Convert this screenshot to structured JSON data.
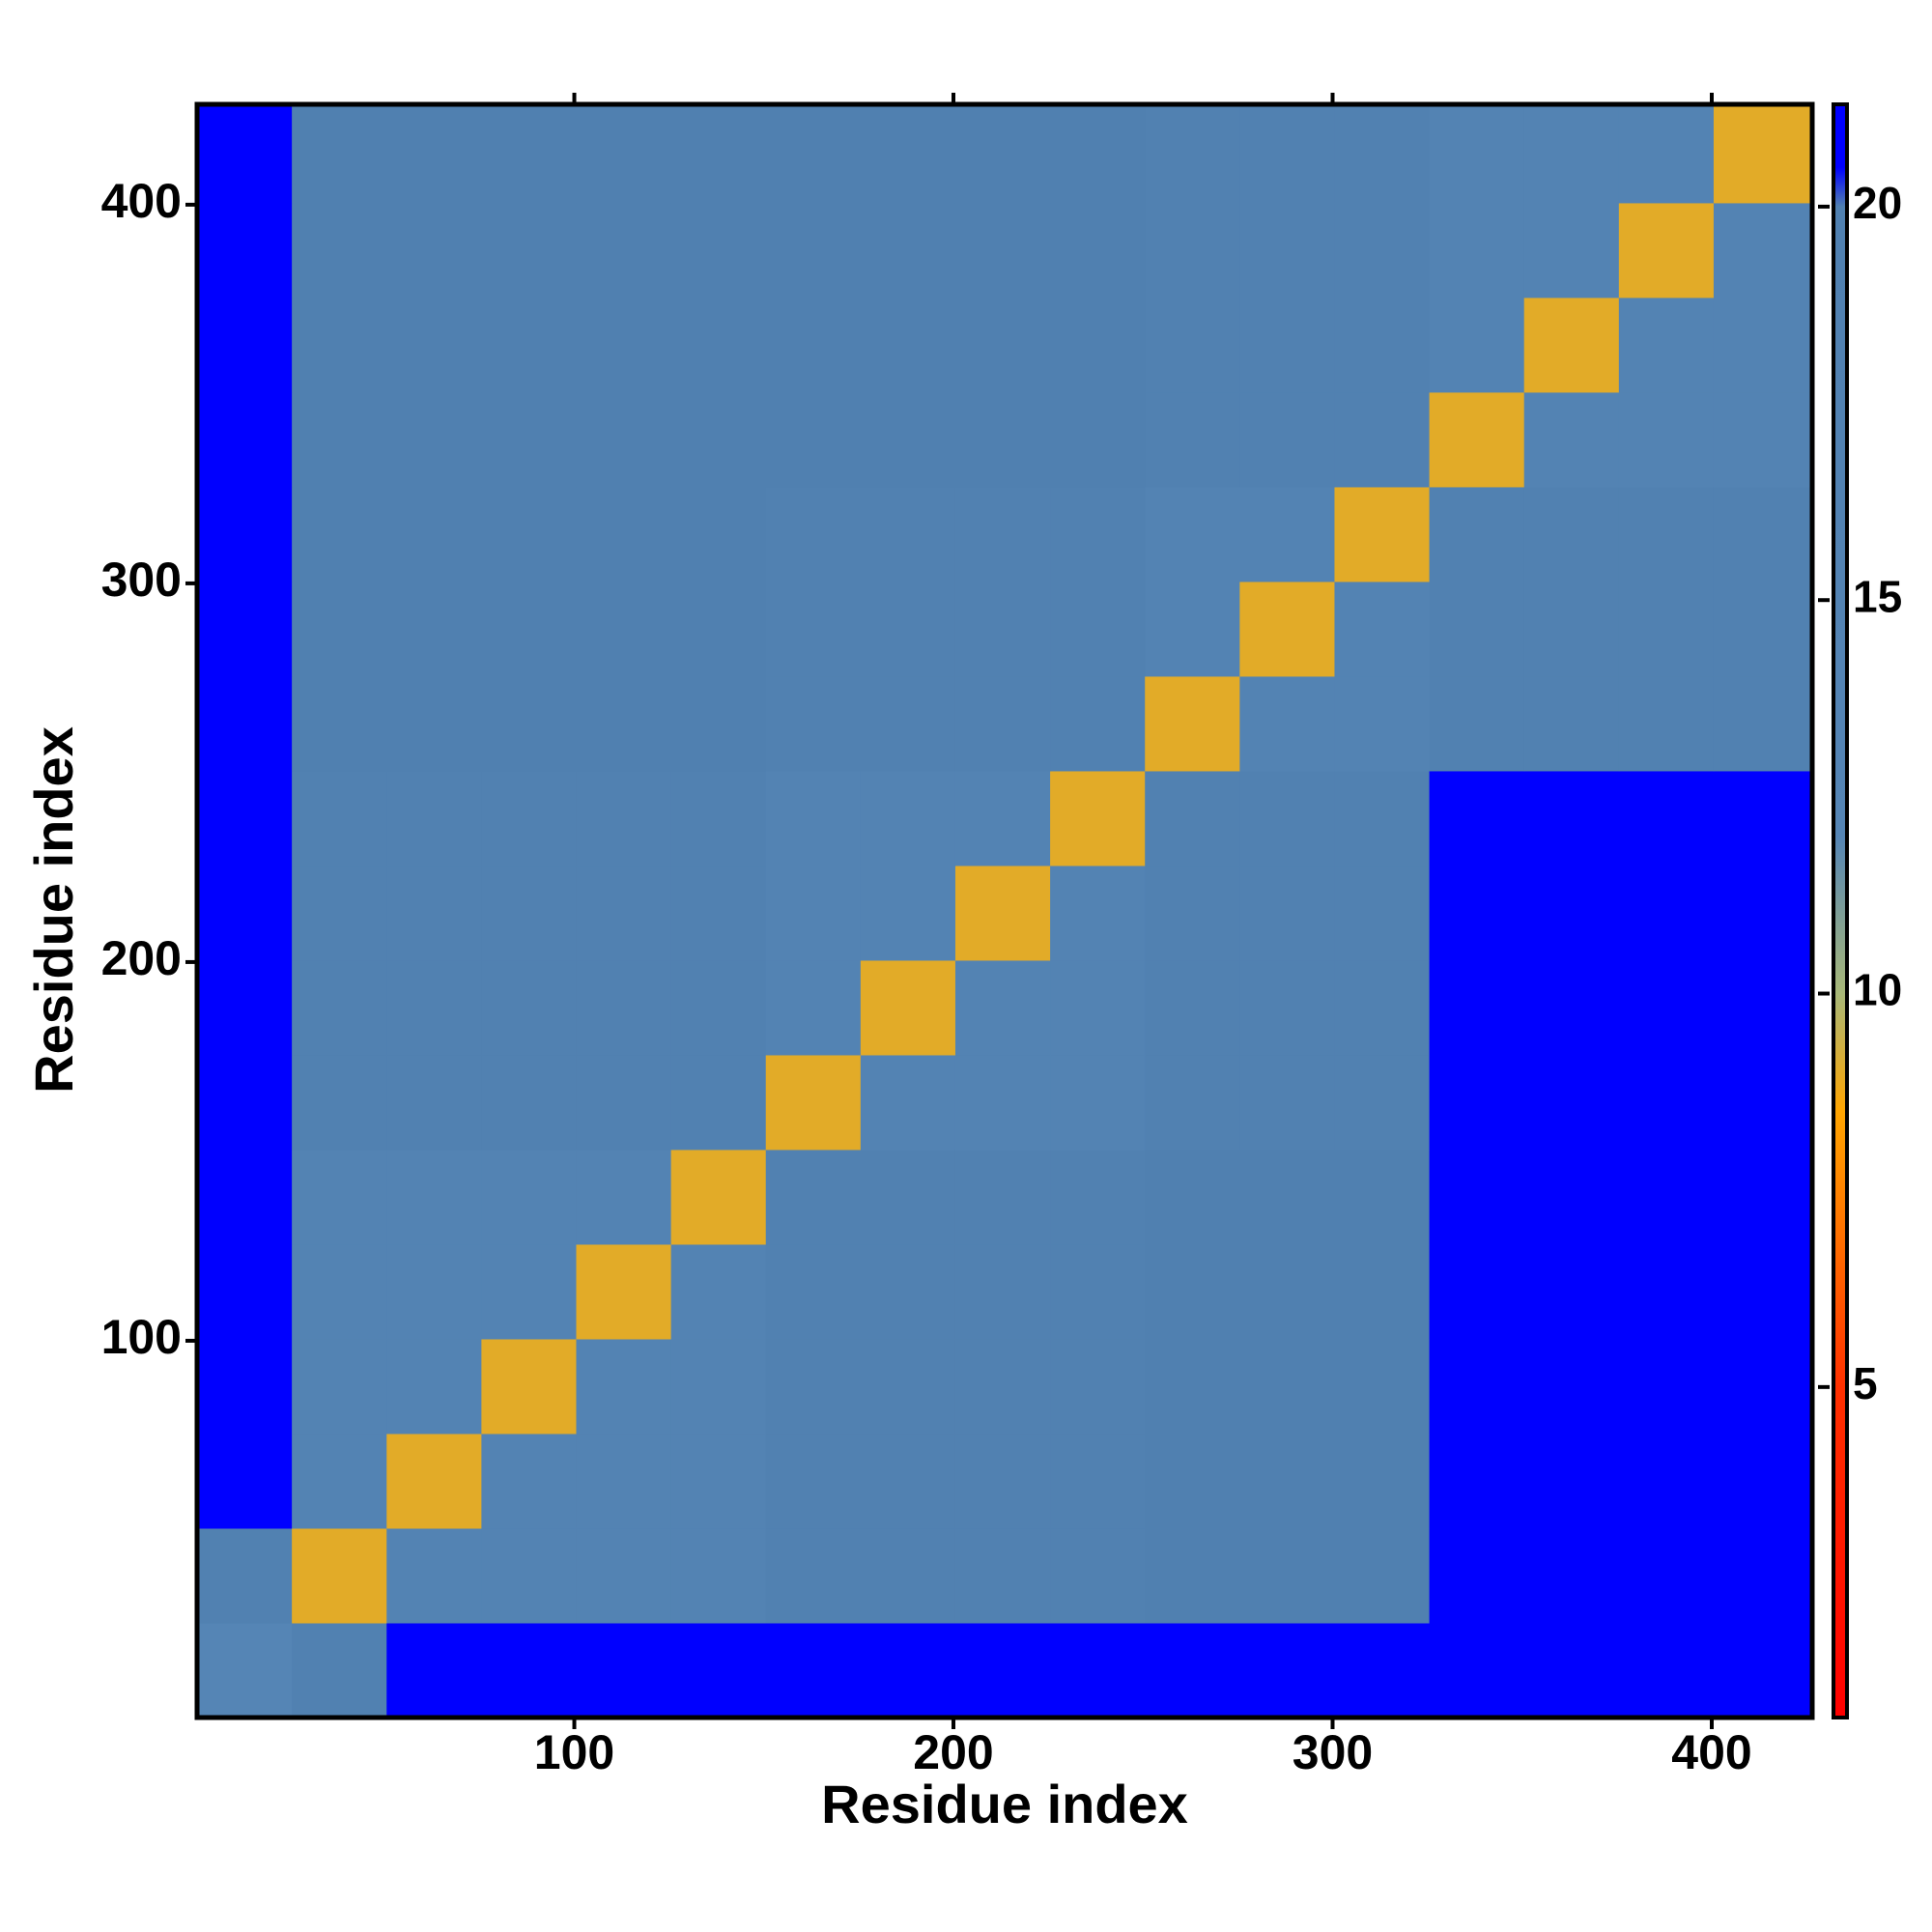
{
  "chart_data": {
    "type": "heatmap",
    "xlabel": "Residue index",
    "ylabel": "Residue index",
    "x_bins": [
      0.5,
      25.5,
      50.5,
      75.5,
      100.5,
      125.5,
      150.5,
      175.5,
      200.5,
      225.5,
      250.5,
      275.5,
      300.5,
      325.5,
      350.5,
      375.5,
      400.5,
      426.5
    ],
    "y_bins": [
      0.5,
      25.5,
      50.5,
      75.5,
      100.5,
      125.5,
      150.5,
      175.5,
      200.5,
      225.5,
      250.5,
      275.5,
      300.5,
      325.5,
      350.5,
      375.5,
      400.5,
      426.5
    ],
    "values": [
      [
        12,
        19,
        21,
        21,
        21,
        21,
        21,
        21,
        21,
        21,
        21,
        21,
        21,
        21,
        21,
        21,
        21
      ],
      [
        19,
        9,
        15,
        15,
        15,
        15,
        19,
        19,
        19,
        19,
        20,
        20,
        20,
        21,
        21,
        21,
        21
      ],
      [
        21,
        15,
        9,
        15,
        15,
        15,
        19,
        19,
        19,
        19,
        20,
        20,
        20,
        21,
        21,
        21,
        21
      ],
      [
        21,
        15,
        15,
        9,
        15,
        15,
        19,
        19,
        19,
        19,
        20,
        20,
        20,
        21,
        21,
        21,
        21
      ],
      [
        21,
        15,
        15,
        15,
        9,
        15,
        19,
        19,
        19,
        19,
        20,
        20,
        20,
        21,
        21,
        21,
        21
      ],
      [
        21,
        15,
        15,
        15,
        15,
        9,
        19,
        19,
        19,
        19,
        20,
        20,
        20,
        21,
        21,
        21,
        21
      ],
      [
        21,
        18,
        18,
        18,
        18,
        18,
        9,
        15,
        15,
        15,
        19,
        19,
        19,
        21,
        21,
        21,
        21
      ],
      [
        21,
        18,
        18,
        18,
        18,
        18,
        15,
        9,
        15,
        15,
        19,
        19,
        19,
        21,
        21,
        21,
        21
      ],
      [
        21,
        18,
        18,
        18,
        18,
        18,
        15,
        15,
        9,
        15,
        19,
        19,
        19,
        21,
        21,
        21,
        21
      ],
      [
        21,
        18,
        18,
        18,
        18,
        18,
        15,
        15,
        15,
        9,
        19,
        19,
        19,
        21,
        21,
        21,
        21
      ],
      [
        21,
        19.5,
        19.5,
        19.5,
        19.5,
        19.5,
        18,
        18,
        18,
        18,
        9,
        15,
        15,
        19,
        19,
        19,
        19
      ],
      [
        21,
        19.5,
        19.5,
        19.5,
        19.5,
        19.5,
        18,
        18,
        18,
        18,
        15,
        9,
        15,
        19,
        19,
        19,
        19
      ],
      [
        21,
        19.5,
        19.5,
        19.5,
        19.5,
        19.5,
        18,
        18,
        18,
        18,
        15,
        15,
        9,
        19,
        19,
        19,
        19
      ],
      [
        21,
        20,
        20,
        20,
        20,
        20,
        19.5,
        19.5,
        19.5,
        19.5,
        18,
        18,
        18,
        9,
        15,
        15,
        15
      ],
      [
        21,
        20,
        20,
        20,
        20,
        20,
        19.5,
        19.5,
        19.5,
        19.5,
        18,
        18,
        18,
        15,
        9,
        15,
        15
      ],
      [
        21,
        20,
        20,
        20,
        20,
        20,
        19.5,
        19.5,
        19.5,
        19.5,
        18,
        18,
        18,
        15,
        15,
        9,
        15
      ],
      [
        21,
        20,
        20,
        20,
        20,
        20,
        19.5,
        19.5,
        19.5,
        19.5,
        18,
        18,
        18,
        15,
        15,
        15,
        9
      ]
    ],
    "xlim": [
      0.5,
      426.5
    ],
    "ylim": [
      0.5,
      426.5
    ],
    "xticks": [
      100,
      200,
      300,
      400
    ],
    "yticks": [
      100,
      200,
      300,
      400
    ],
    "colorbar": {
      "lim": [
        0.8,
        21.3
      ],
      "ticks": [
        5,
        10,
        15,
        20
      ]
    },
    "colorscale": [
      [
        0.8,
        "#ff0000"
      ],
      [
        5,
        "#ff3000"
      ],
      [
        8.5,
        "#ffa500"
      ],
      [
        10,
        "#a8b878"
      ],
      [
        12,
        "#5585b5"
      ],
      [
        20,
        "#5080b0"
      ],
      [
        20.5,
        "#0000ff"
      ],
      [
        21.3,
        "#0000ff"
      ]
    ]
  }
}
